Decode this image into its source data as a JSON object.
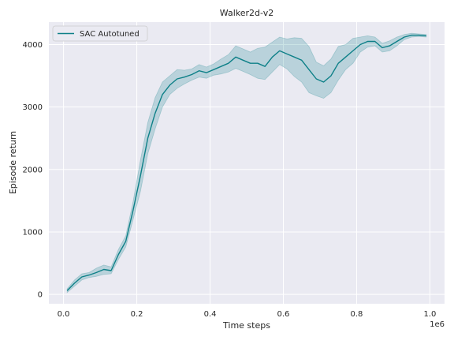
{
  "chart_data": {
    "type": "line",
    "title": "Walker2d-v2",
    "xlabel": "Time steps",
    "ylabel": "Episode return",
    "x_offset_label": "1e6",
    "xlim": [
      -0.04,
      1.04
    ],
    "ylim": [
      -150,
      4360
    ],
    "x_ticks": [
      0.0,
      0.2,
      0.4,
      0.6,
      0.8,
      1.0
    ],
    "x_tick_labels": [
      "0.0",
      "0.2",
      "0.4",
      "0.6",
      "0.8",
      "1.0"
    ],
    "y_ticks": [
      0,
      1000,
      2000,
      3000,
      4000
    ],
    "y_tick_labels": [
      "0",
      "1000",
      "2000",
      "3000",
      "4000"
    ],
    "grid": true,
    "legend_position": "upper-left",
    "series": [
      {
        "name": "SAC Autotuned",
        "color": "#0e8088",
        "band_color": "#0e8088",
        "x": [
          0.01,
          0.03,
          0.05,
          0.07,
          0.09,
          0.11,
          0.13,
          0.15,
          0.17,
          0.19,
          0.21,
          0.23,
          0.25,
          0.27,
          0.29,
          0.31,
          0.33,
          0.35,
          0.37,
          0.39,
          0.41,
          0.43,
          0.45,
          0.47,
          0.49,
          0.51,
          0.53,
          0.55,
          0.57,
          0.59,
          0.61,
          0.63,
          0.65,
          0.67,
          0.69,
          0.71,
          0.73,
          0.75,
          0.77,
          0.79,
          0.81,
          0.83,
          0.85,
          0.87,
          0.89,
          0.91,
          0.93,
          0.95,
          0.97,
          0.99
        ],
        "mean": [
          60,
          180,
          280,
          310,
          350,
          400,
          380,
          640,
          850,
          1350,
          1900,
          2500,
          2900,
          3200,
          3350,
          3450,
          3480,
          3520,
          3580,
          3550,
          3600,
          3650,
          3700,
          3800,
          3750,
          3700,
          3700,
          3650,
          3800,
          3900,
          3850,
          3800,
          3750,
          3600,
          3450,
          3400,
          3500,
          3700,
          3800,
          3900,
          4000,
          4050,
          4050,
          3950,
          3980,
          4050,
          4120,
          4150,
          4150,
          4140
        ],
        "lower": [
          30,
          130,
          230,
          270,
          290,
          320,
          330,
          560,
          760,
          1200,
          1650,
          2250,
          2650,
          3000,
          3200,
          3300,
          3370,
          3430,
          3480,
          3460,
          3510,
          3530,
          3560,
          3620,
          3570,
          3520,
          3460,
          3440,
          3560,
          3680,
          3610,
          3490,
          3400,
          3230,
          3180,
          3140,
          3230,
          3430,
          3600,
          3700,
          3880,
          3960,
          3980,
          3880,
          3900,
          3980,
          4080,
          4120,
          4130,
          4120
        ],
        "upper": [
          90,
          230,
          330,
          350,
          420,
          470,
          440,
          720,
          940,
          1490,
          2150,
          2750,
          3150,
          3400,
          3500,
          3600,
          3590,
          3610,
          3680,
          3640,
          3690,
          3770,
          3840,
          3980,
          3930,
          3880,
          3940,
          3960,
          4040,
          4120,
          4090,
          4110,
          4100,
          3970,
          3720,
          3660,
          3770,
          3970,
          4000,
          4100,
          4120,
          4140,
          4120,
          4020,
          4060,
          4120,
          4160,
          4180,
          4170,
          4160
        ]
      }
    ]
  }
}
